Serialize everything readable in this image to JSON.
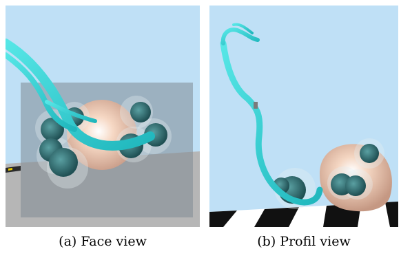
{
  "figure": {
    "panels": [
      {
        "id": "a",
        "caption": "(a) Face view"
      },
      {
        "id": "b",
        "caption": "(b) Profil view"
      }
    ]
  },
  "colors": {
    "sky": "#bfe0f6",
    "floor_gray": "#b9b9b9",
    "transparent_plane": "#8e9aa2",
    "tube_cyan": "#3fd4d4",
    "head_skin": "#f2cdb4",
    "spheres_teal": "#2d6e72",
    "checker_dark": "#111111",
    "checker_light": "#ffffff"
  }
}
